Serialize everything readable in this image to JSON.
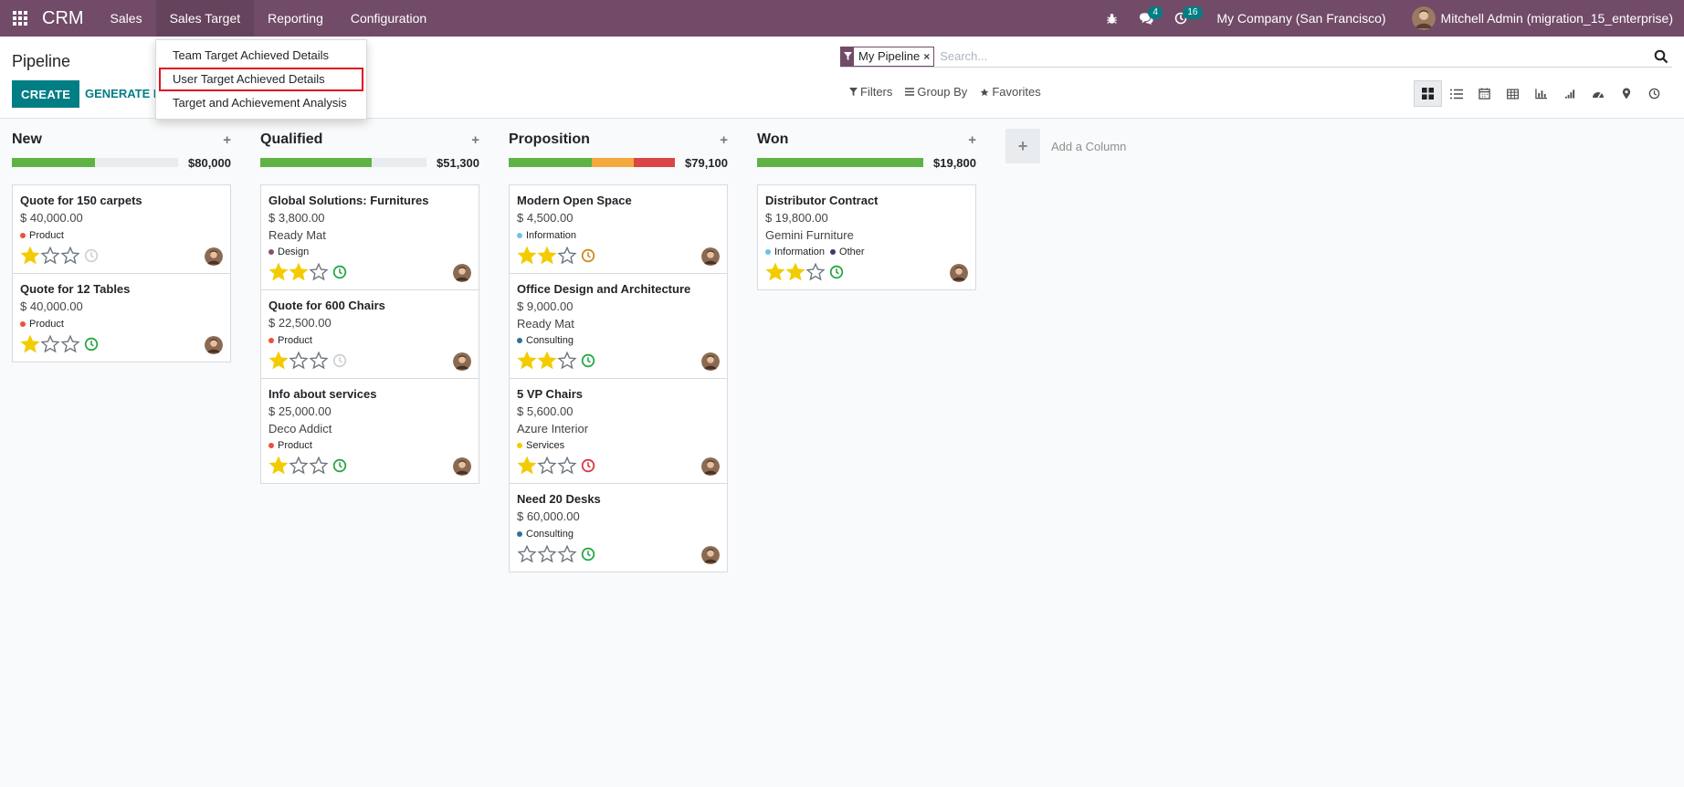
{
  "navbar": {
    "brand": "CRM",
    "menus": [
      "Sales",
      "Sales Target",
      "Reporting",
      "Configuration"
    ],
    "messages_count": "4",
    "activities_count": "16",
    "company": "My Company (San Francisco)",
    "user": "Mitchell Admin (migration_15_enterprise)"
  },
  "dropdown": {
    "items": [
      "Team Target Achieved Details",
      "User Target Achieved Details",
      "Target and Achievement Analysis"
    ],
    "highlighted_index": 1
  },
  "control": {
    "title": "Pipeline",
    "create_label": "CREATE",
    "generate_label": "GENERATE LEADS",
    "search_facet": "My Pipeline",
    "search_placeholder": "Search...",
    "filters_label": "Filters",
    "groupby_label": "Group By",
    "favorites_label": "Favorites",
    "views": [
      "kanban-icon",
      "list-icon",
      "calendar-icon",
      "pivot-icon",
      "graph-icon",
      "cohort-icon",
      "dashboard-icon",
      "map-icon",
      "activity-icon"
    ],
    "active_view": "kanban-icon"
  },
  "colors": {
    "brand": "#714b67",
    "accent": "#017e84",
    "green": "#5fb344",
    "orange": "#f3a93c",
    "red": "#dc4545",
    "star": "#f3cc00"
  },
  "kanban": {
    "add_column_label": "Add a Column",
    "columns": [
      {
        "title": "New",
        "amount": "$80,000",
        "progress": [
          {
            "color": "#5fb344",
            "fraction": 0.5
          }
        ],
        "cards": [
          {
            "title": "Quote for 150 carpets",
            "amount": "$ 40,000.00",
            "partner": "",
            "tags": [
              {
                "name": "Product",
                "color": "#e8533c"
              }
            ],
            "stars": 1,
            "activity": "none"
          },
          {
            "title": "Quote for 12 Tables",
            "amount": "$ 40,000.00",
            "partner": "",
            "tags": [
              {
                "name": "Product",
                "color": "#e8533c"
              }
            ],
            "stars": 1,
            "activity": "planned"
          }
        ]
      },
      {
        "title": "Qualified",
        "amount": "$51,300",
        "progress": [
          {
            "color": "#5fb344",
            "fraction": 0.67
          }
        ],
        "cards": [
          {
            "title": "Global Solutions: Furnitures",
            "amount": "$ 3,800.00",
            "partner": "Ready Mat",
            "tags": [
              {
                "name": "Design",
                "color": "#8a4f6f"
              }
            ],
            "stars": 2,
            "activity": "planned"
          },
          {
            "title": "Quote for 600 Chairs",
            "amount": "$ 22,500.00",
            "partner": "",
            "tags": [
              {
                "name": "Product",
                "color": "#e8533c"
              }
            ],
            "stars": 1,
            "activity": "none"
          },
          {
            "title": "Info about services",
            "amount": "$ 25,000.00",
            "partner": "Deco Addict",
            "tags": [
              {
                "name": "Product",
                "color": "#e8533c"
              }
            ],
            "stars": 1,
            "activity": "planned"
          }
        ]
      },
      {
        "title": "Proposition",
        "amount": "$79,100",
        "progress": [
          {
            "color": "#5fb344",
            "fraction": 0.5
          },
          {
            "color": "#f3a93c",
            "fraction": 0.25
          },
          {
            "color": "#dc4545",
            "fraction": 0.25
          }
        ],
        "cards": [
          {
            "title": "Modern Open Space",
            "amount": "$ 4,500.00",
            "partner": "",
            "tags": [
              {
                "name": "Information",
                "color": "#6cc1ed"
              }
            ],
            "stars": 2,
            "activity": "today"
          },
          {
            "title": "Office Design and Architecture",
            "amount": "$ 9,000.00",
            "partner": "Ready Mat",
            "tags": [
              {
                "name": "Consulting",
                "color": "#30709d"
              }
            ],
            "stars": 2,
            "activity": "planned"
          },
          {
            "title": "5 VP Chairs",
            "amount": "$ 5,600.00",
            "partner": "Azure Interior",
            "tags": [
              {
                "name": "Services",
                "color": "#f3cc00"
              }
            ],
            "stars": 1,
            "activity": "overdue"
          },
          {
            "title": "Need 20 Desks",
            "amount": "$ 60,000.00",
            "partner": "",
            "tags": [
              {
                "name": "Consulting",
                "color": "#30709d"
              }
            ],
            "stars": 0,
            "activity": "planned"
          }
        ]
      },
      {
        "title": "Won",
        "amount": "$19,800",
        "progress": [
          {
            "color": "#5fb344",
            "fraction": 1.0
          }
        ],
        "cards": [
          {
            "title": "Distributor Contract",
            "amount": "$ 19,800.00",
            "partner": "Gemini Furniture",
            "tags": [
              {
                "name": "Information",
                "color": "#6cc1ed"
              },
              {
                "name": "Other",
                "color": "#3c3c6c"
              }
            ],
            "stars": 2,
            "activity": "planned"
          }
        ]
      }
    ]
  }
}
